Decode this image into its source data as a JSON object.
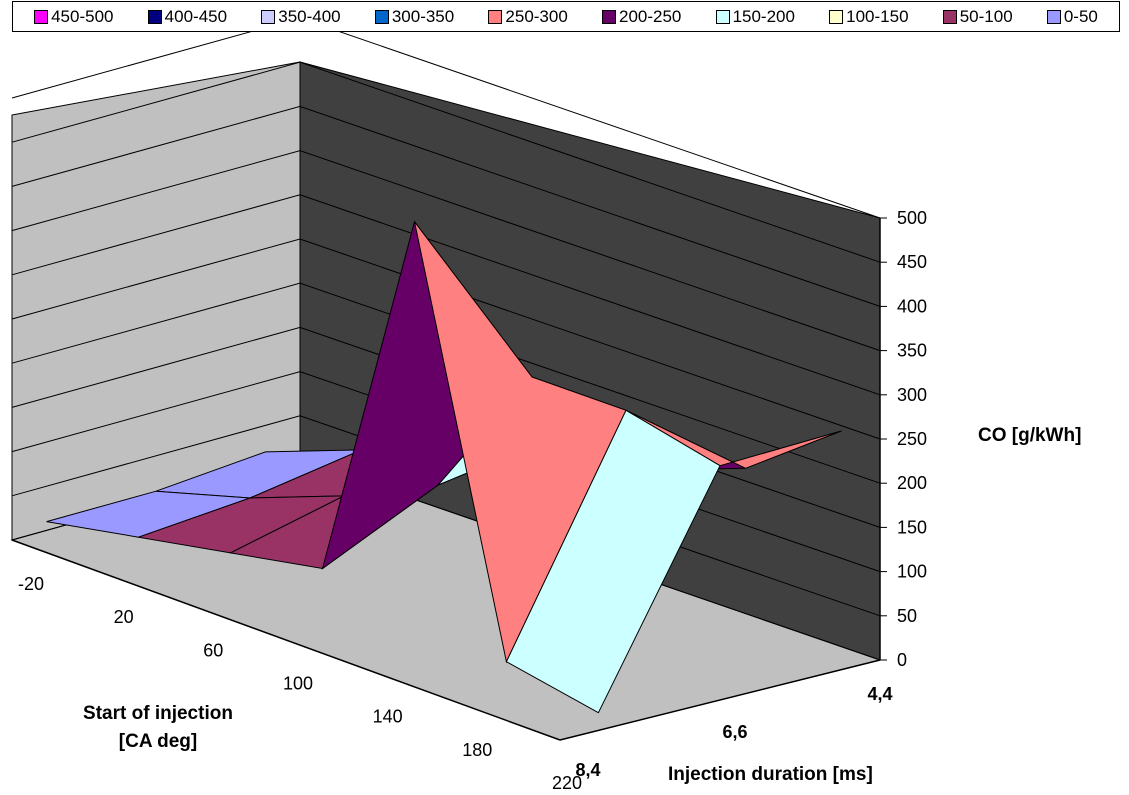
{
  "legend": {
    "items": [
      {
        "label": "450-500",
        "color": "#ff00ff"
      },
      {
        "label": "400-450",
        "color": "#000080"
      },
      {
        "label": "350-400",
        "color": "#ccccff"
      },
      {
        "label": "300-350",
        "color": "#0066cc"
      },
      {
        "label": "250-300",
        "color": "#ff8080"
      },
      {
        "label": "200-250",
        "color": "#660066"
      },
      {
        "label": "150-200",
        "color": "#ccffff"
      },
      {
        "label": "100-150",
        "color": "#ffffcc"
      },
      {
        "label": "50-100",
        "color": "#993366"
      },
      {
        "label": "0-50",
        "color": "#9999ff"
      }
    ]
  },
  "chart_data": {
    "type": "surface-3d",
    "ylabel": "CO [g/kWh]",
    "xlabel_line1": "Start of injection",
    "xlabel_line2": "[CA deg]",
    "zlabel": "Injection duration [ms]",
    "x_ticks": [
      "-20",
      "20",
      "60",
      "100",
      "140",
      "180",
      "220"
    ],
    "z_ticks": [
      "4,4",
      "6,6",
      "8,4"
    ],
    "y_ticks": [
      "0",
      "50",
      "100",
      "150",
      "200",
      "250",
      "300",
      "350",
      "400",
      "450",
      "500"
    ],
    "ylim": [
      0,
      500
    ],
    "x": [
      -20,
      20,
      60,
      100,
      140,
      180,
      220
    ],
    "z": [
      "4,4",
      "6,6",
      "8,4"
    ],
    "series": [
      {
        "z": "4,4",
        "values": [
          20,
          60,
          90,
          150,
          150,
          190,
          270
        ]
      },
      {
        "z": "6,6",
        "values": [
          10,
          40,
          80,
          130,
          290,
          290,
          265
        ]
      },
      {
        "z": "8,4",
        "values": [
          10,
          30,
          50,
          70,
          500,
          40,
          20
        ]
      }
    ]
  },
  "colors": {
    "back_wall": "#404040",
    "side_wall": "#c0c0c0",
    "floor": "#c0c0c0",
    "gridline": "#000000"
  }
}
